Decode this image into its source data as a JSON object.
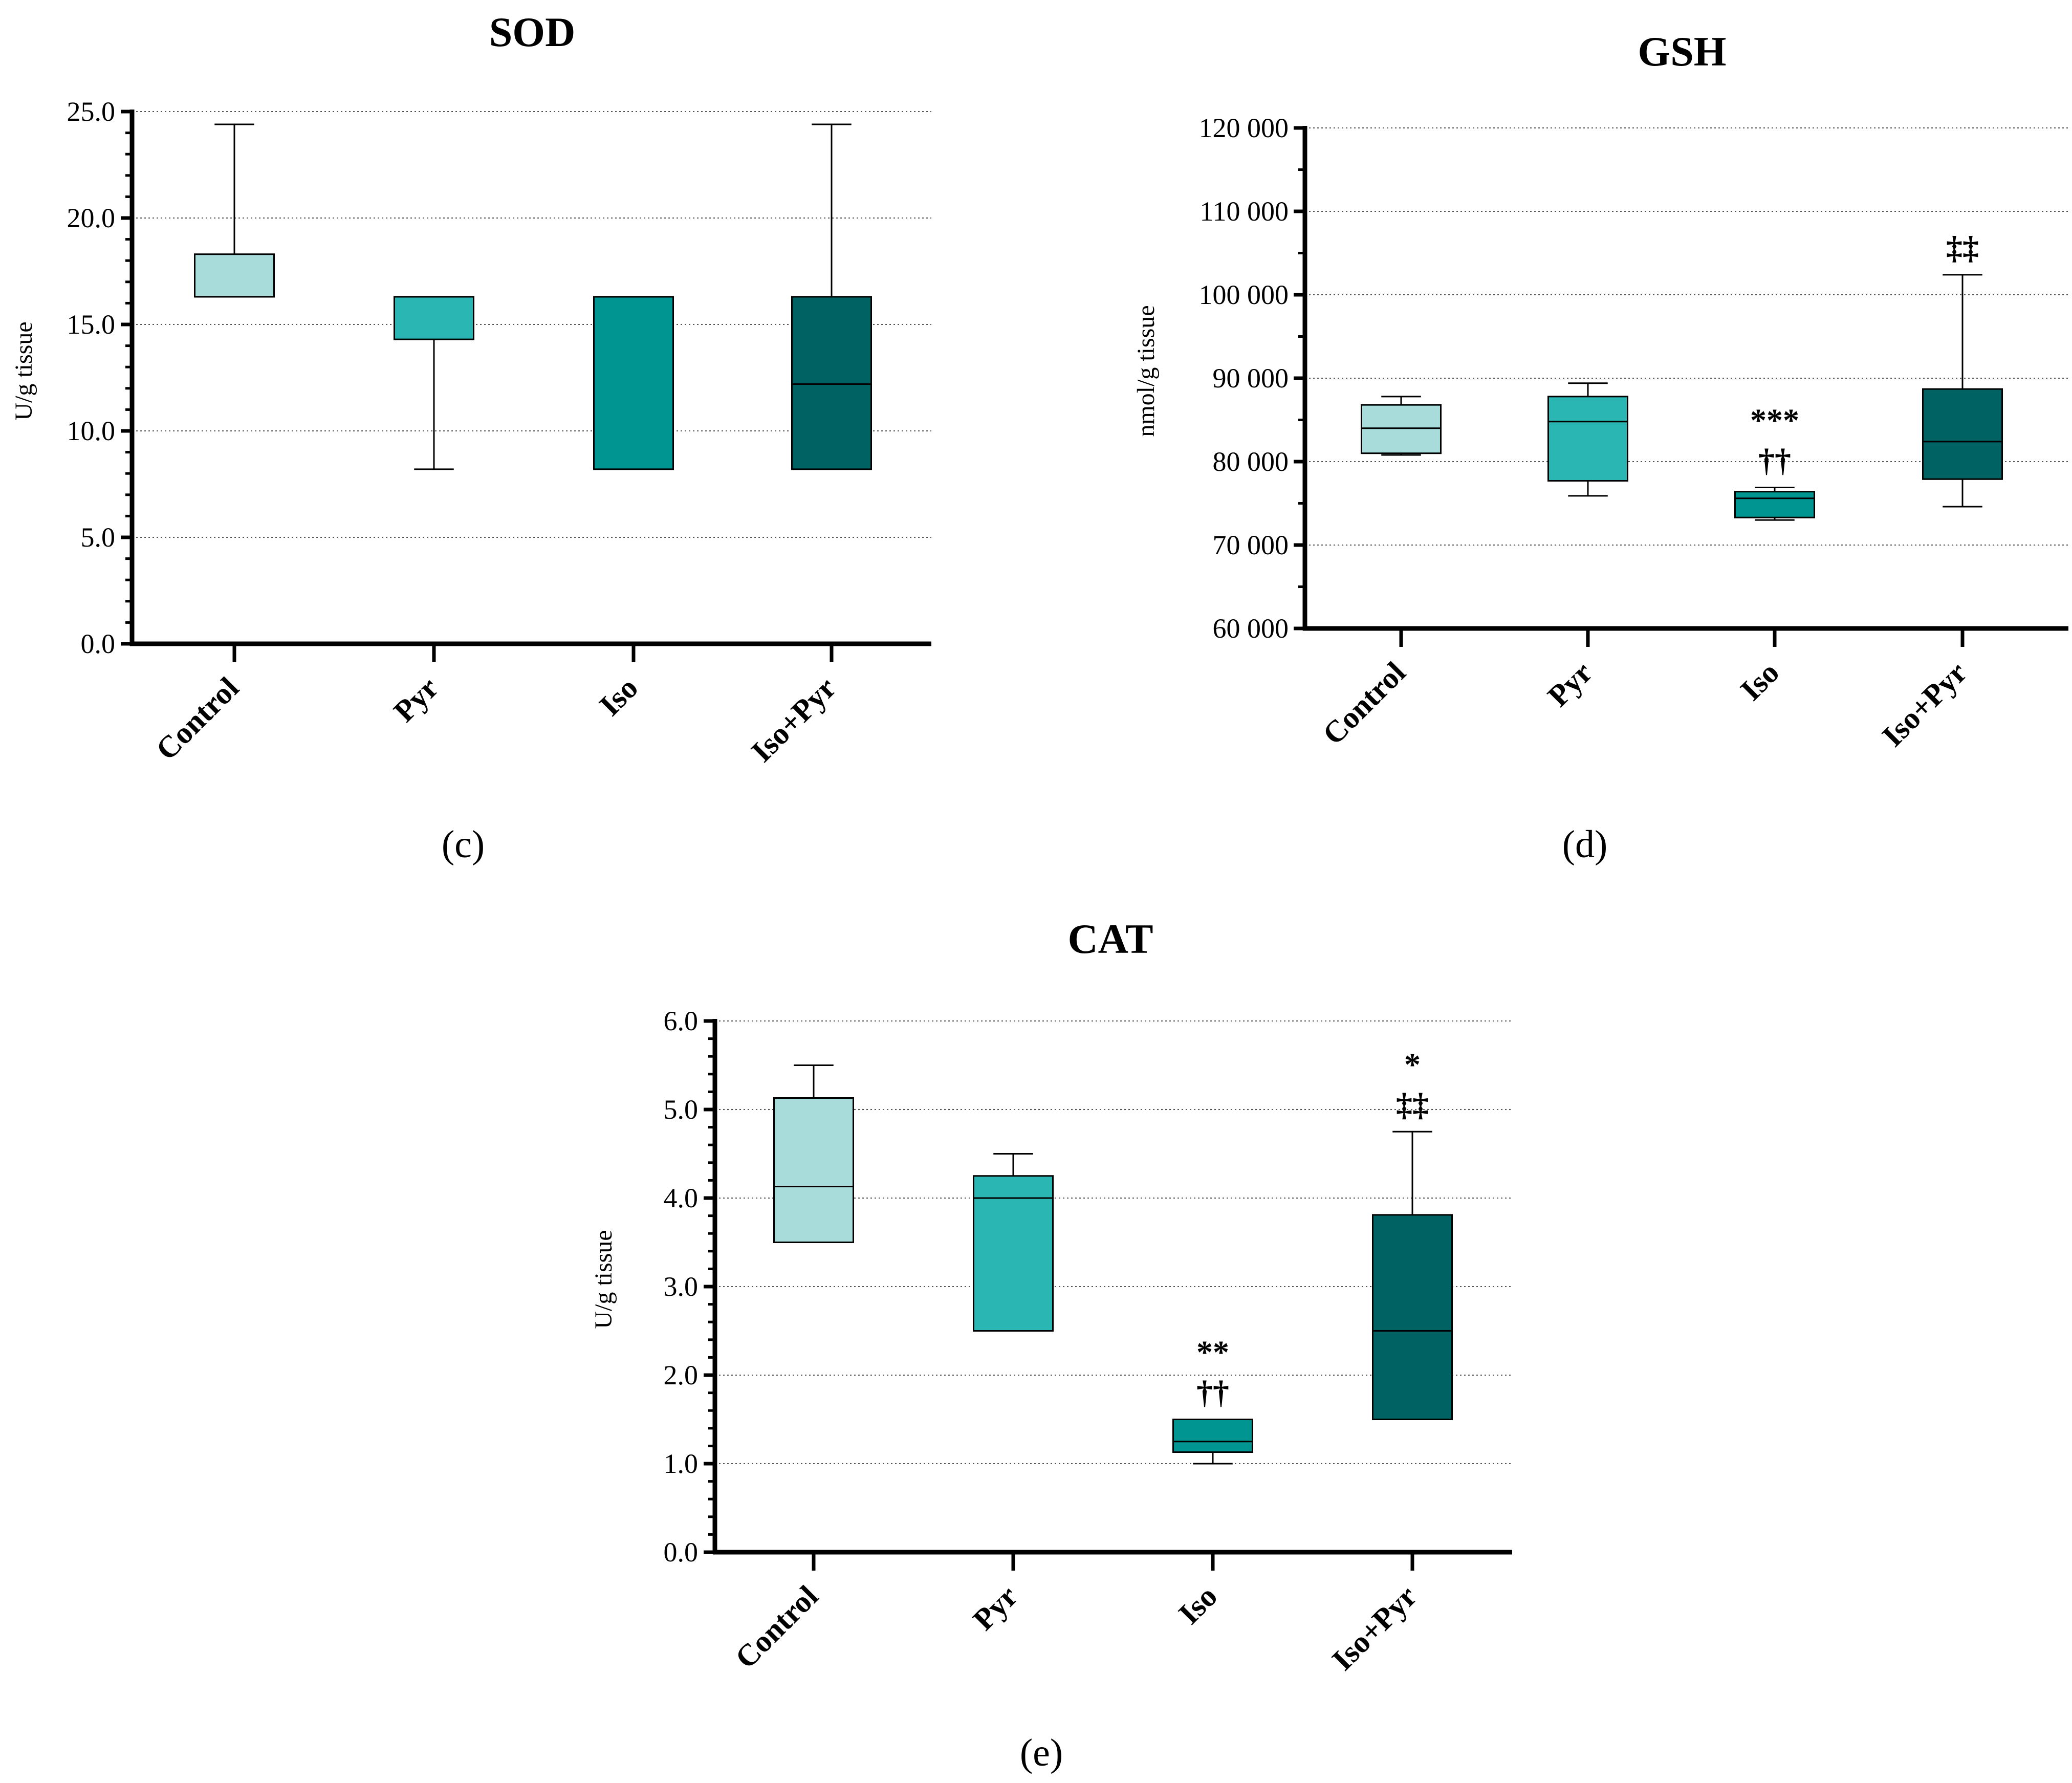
{
  "figure": {
    "panels": [
      "c",
      "d",
      "e"
    ]
  },
  "colors": {
    "Control": "#a7dcdb",
    "Pyr": "#2ab7b4",
    "Iso": "#009590",
    "Iso+Pyr": "#006263"
  },
  "chart_data": [
    {
      "type": "box",
      "panel": "c",
      "panel_label": "(c)",
      "title": "SOD",
      "ylabel": "U/g tissue",
      "ylim": [
        0,
        25
      ],
      "yticks": [
        0,
        5,
        10,
        15,
        20,
        25
      ],
      "ytick_labels": [
        "0.0",
        "5.0",
        "10.0",
        "15.0",
        "20.0",
        "25.0"
      ],
      "minor_ticks_per_major": 5,
      "gridlines": true,
      "categories": [
        "Control",
        "Pyr",
        "Iso",
        "Iso+Pyr"
      ],
      "boxes": [
        {
          "group": "Control",
          "min": 16.3,
          "q1": 16.3,
          "median": 16.3,
          "q3": 18.3,
          "max": 24.4
        },
        {
          "group": "Pyr",
          "min": 8.2,
          "q1": 14.3,
          "median": 16.3,
          "q3": 16.3,
          "max": 16.3
        },
        {
          "group": "Iso",
          "min": 8.2,
          "q1": 8.2,
          "median": 16.3,
          "q3": 16.3,
          "max": 16.3
        },
        {
          "group": "Iso+Pyr",
          "min": 8.2,
          "q1": 8.2,
          "median": 12.2,
          "q3": 16.3,
          "max": 24.4
        }
      ],
      "annotations": []
    },
    {
      "type": "box",
      "panel": "d",
      "panel_label": "(d)",
      "title": "GSH",
      "ylabel": "nmol/g tissue",
      "ylim": [
        60000,
        120000
      ],
      "yticks": [
        60000,
        70000,
        80000,
        90000,
        100000,
        110000,
        120000
      ],
      "ytick_labels": [
        "60 000",
        "70 000",
        "80 000",
        "90 000",
        "100 000",
        "110 000",
        "120 000"
      ],
      "minor_ticks_per_major": 2,
      "gridlines": true,
      "categories": [
        "Control",
        "Pyr",
        "Iso",
        "Iso+Pyr"
      ],
      "boxes": [
        {
          "group": "Control",
          "min": 80800,
          "q1": 81000,
          "median": 84000,
          "q3": 86800,
          "max": 87800
        },
        {
          "group": "Pyr",
          "min": 75900,
          "q1": 77700,
          "median": 84800,
          "q3": 87800,
          "max": 89400
        },
        {
          "group": "Iso",
          "min": 73000,
          "q1": 73300,
          "median": 75600,
          "q3": 76400,
          "max": 76900
        },
        {
          "group": "Iso+Pyr",
          "min": 74600,
          "q1": 77900,
          "median": 82400,
          "q3": 88700,
          "max": 102400
        }
      ],
      "annotations": [
        {
          "group": "Iso",
          "lines": [
            "***",
            "††"
          ]
        },
        {
          "group": "Iso+Pyr",
          "lines": [
            "‡‡"
          ]
        }
      ]
    },
    {
      "type": "box",
      "panel": "e",
      "panel_label": "(e)",
      "title": "CAT",
      "ylabel": "U/g tissue",
      "ylim": [
        0,
        6
      ],
      "yticks": [
        0,
        1,
        2,
        3,
        4,
        5,
        6
      ],
      "ytick_labels": [
        "0.0",
        "1.0",
        "2.0",
        "3.0",
        "4.0",
        "5.0",
        "6.0"
      ],
      "minor_ticks_per_major": 5,
      "gridlines": true,
      "categories": [
        "Control",
        "Pyr",
        "Iso",
        "Iso+Pyr"
      ],
      "boxes": [
        {
          "group": "Control",
          "min": 3.5,
          "q1": 3.5,
          "median": 4.13,
          "q3": 5.13,
          "max": 5.5
        },
        {
          "group": "Pyr",
          "min": 2.5,
          "q1": 2.5,
          "median": 4.0,
          "q3": 4.25,
          "max": 4.5
        },
        {
          "group": "Iso",
          "min": 1.0,
          "q1": 1.13,
          "median": 1.25,
          "q3": 1.5,
          "max": 1.5
        },
        {
          "group": "Iso+Pyr",
          "min": 1.5,
          "q1": 1.5,
          "median": 2.5,
          "q3": 3.81,
          "max": 4.75
        }
      ],
      "annotations": [
        {
          "group": "Iso",
          "lines": [
            "**",
            "††"
          ]
        },
        {
          "group": "Iso+Pyr",
          "lines": [
            "*",
            "‡‡"
          ]
        }
      ]
    }
  ]
}
